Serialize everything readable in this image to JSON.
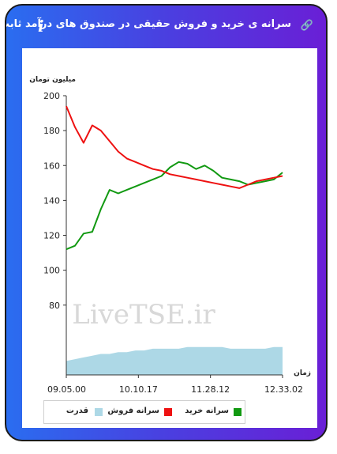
{
  "header": {
    "title": "سرانه ی خرید و فروش حقیقی در صندوق های درآمد ثابت",
    "info_glyph": "i",
    "link_icon": "link-icon"
  },
  "chart_data": {
    "type": "line",
    "ylabel": "میلیون تومان",
    "xlabel": "زمان",
    "ylim": [
      40,
      200
    ],
    "yticks": [
      80,
      100,
      120,
      140,
      160,
      180,
      200
    ],
    "xticks": [
      "09.05.00",
      "10.10.17",
      "11.28.12",
      "12.33.02"
    ],
    "watermark": "LiveTSE.ir",
    "legend": {
      "placement": "bottom"
    },
    "x": [
      0,
      4,
      8,
      12,
      16,
      20,
      24,
      28,
      32,
      36,
      40,
      44,
      48,
      52,
      56,
      60,
      64,
      68,
      72,
      76,
      80,
      84,
      88,
      92,
      96,
      100
    ],
    "series": [
      {
        "name": "سرانه خرید",
        "color": "#119911",
        "kind": "line",
        "values": [
          112,
          114,
          121,
          122,
          135,
          146,
          144,
          146,
          148,
          150,
          152,
          154,
          159,
          162,
          161,
          158,
          160,
          157,
          153,
          152,
          151,
          149,
          150,
          151,
          152,
          156
        ]
      },
      {
        "name": "سرانه فروش",
        "color": "#ee1111",
        "kind": "line",
        "values": [
          194,
          182,
          173,
          183,
          180,
          174,
          168,
          164,
          162,
          160,
          158,
          157,
          155,
          154,
          153,
          152,
          151,
          150,
          149,
          148,
          147,
          149,
          151,
          152,
          153,
          154
        ]
      },
      {
        "name": "قدرت",
        "color": "#add8e6",
        "kind": "area",
        "values": [
          48,
          49,
          50,
          51,
          52,
          52,
          53,
          53,
          54,
          54,
          55,
          55,
          55,
          55,
          56,
          56,
          56,
          56,
          56,
          55,
          55,
          55,
          55,
          55,
          56,
          56
        ]
      }
    ]
  }
}
